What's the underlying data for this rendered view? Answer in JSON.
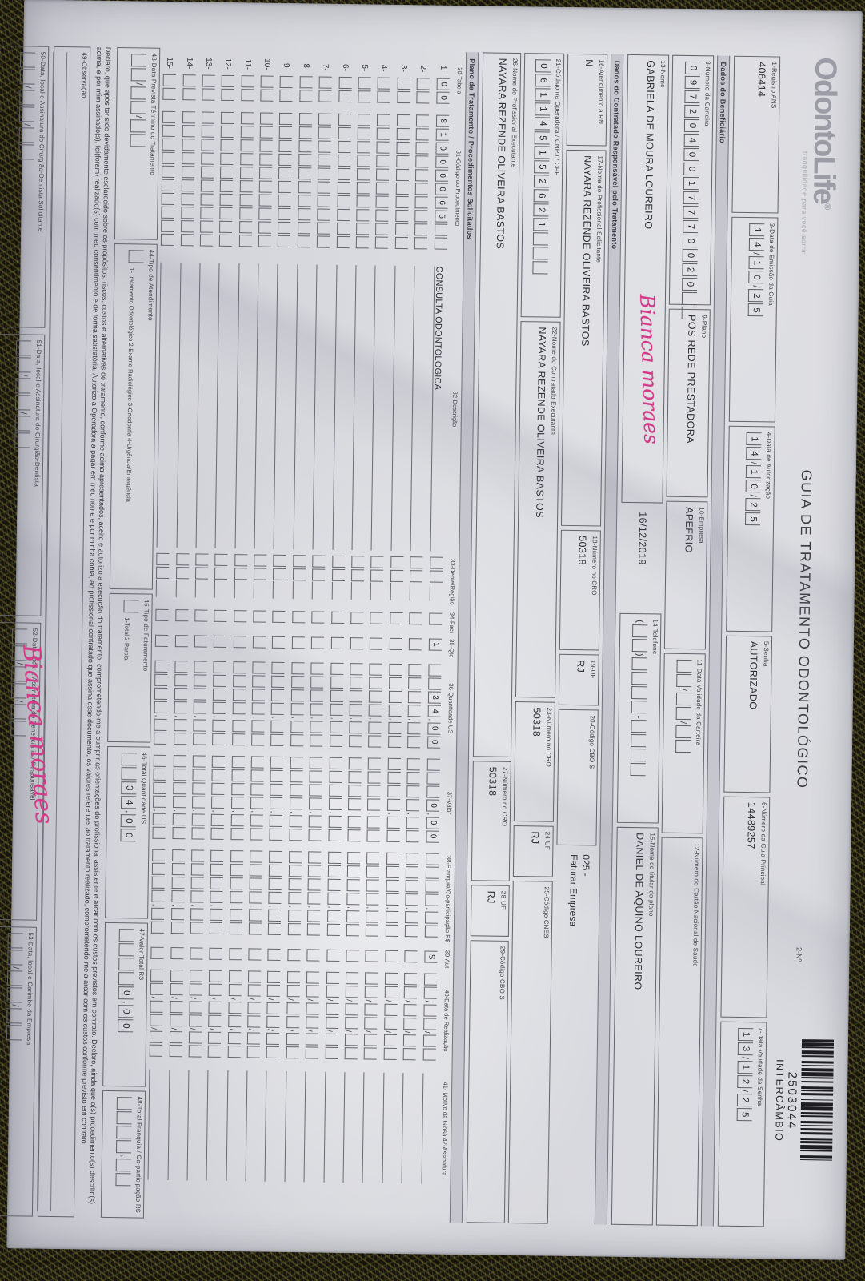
{
  "colors": {
    "paper": "#d8d8de",
    "ink": "#2e2e36",
    "handwriting_pink": "#d33a88",
    "band_gray": "#c6c7ce"
  },
  "brand": {
    "logo": "OdontoLife",
    "reg": "®",
    "tagline": "tranquilidade para você sorrir"
  },
  "title": "GUIA DE TRATAMENTO ODONTOLÓGICO",
  "doc_number_label": "2-Nº",
  "barcode": {
    "number": "2503044",
    "subtitle": "INTERCÂMBIO"
  },
  "top_fields": {
    "registro": {
      "label": "1-Registro ANS",
      "value": "406414"
    },
    "emissao": {
      "label": "3-Data de Emissão da Guia",
      "pattern": "##/##/##",
      "value": "141025"
    },
    "autorizacao": {
      "label": "4-Data de Autorização",
      "pattern": "##/##/##",
      "value": "141025"
    },
    "senha": {
      "label": "5-Senha",
      "value": "AUTORIZADO"
    },
    "guia_principal": {
      "label": "6-Número da Guia Principal",
      "value": "14489257"
    },
    "validade_senha": {
      "label": "7-Data Validade da Senha",
      "pattern": "##/##/##",
      "value": "131225"
    }
  },
  "beneficiario": {
    "section_label": "Dados do Beneficiário",
    "carteira": {
      "label": "8-Número da Carteira",
      "pattern": "##################",
      "value": "0972040017770020"
    },
    "plano": {
      "label": "9-Plano",
      "value": "POS REDE PRESTADORA"
    },
    "empresa": {
      "label": "10-Empresa",
      "value": "APEFRIO"
    },
    "validade_carteira": {
      "label": "11-Data Validade da Carteira",
      "pattern": "##/##/##",
      "value": ""
    },
    "cns": {
      "label": "12-Número do Cartão Nacional de Saúde",
      "value": ""
    },
    "nome": {
      "label": "13-Nome",
      "value": "GABRIELA DE MOURA LOUREIRO"
    },
    "nascimento": "16/12/2019",
    "handwriting": "Bianca moraes",
    "telefone": {
      "label": "14-Telefone",
      "pattern": "(##)####-####",
      "value": ""
    },
    "titular": {
      "label": "15-Nome do titular do plano",
      "value": "DANIEL DE AQUINO LOUREIRO"
    }
  },
  "contratado": {
    "section_label": "Dados do Contratado Responsável pelo Tratamento",
    "rn": {
      "label": "16-Atendimento a RN",
      "value": "N"
    },
    "solicitante": {
      "label": "17-Nome do Profissional Solicitante",
      "value": "NAYARA REZENDE OLIVEIRA BASTOS"
    },
    "cro_solicitante": {
      "label": "18-Número no CRO",
      "value": "50318"
    },
    "uf_solicitante": {
      "label": "19-UF",
      "value": "RJ"
    },
    "cbo_solicitante": {
      "label": "20-Código CBO S",
      "value": ""
    },
    "nota_linha1": "025 -",
    "nota_linha2": "Faturar Empresa",
    "codigo_operadora": {
      "label": "21-Código na Operadora / CNPJ / CPF",
      "pattern": "###############",
      "value": "061145152621"
    },
    "executante": {
      "label": "22-Nome do Contratado Executante",
      "value": "NAYARA REZENDE OLIVEIRA BASTOS"
    },
    "cro_executante": {
      "label": "23-Número no CRO",
      "value": "50318"
    },
    "uf_executante": {
      "label": "24-UF",
      "value": "RJ"
    },
    "cnes": {
      "label": "25-Código CNES",
      "value": ""
    },
    "prof_executante": {
      "label": "26-Nome do Profissional Executante",
      "value": "NAYARA REZENDE OLIVEIRA BASTOS"
    },
    "cro_prof": {
      "label": "27-Número no CRO",
      "value": "50318"
    },
    "uf_prof": {
      "label": "28-UF",
      "value": "RJ"
    },
    "cbo_prof": {
      "label": "29-Código CBO S",
      "value": ""
    }
  },
  "table": {
    "section_label": "Plano de Tratamento / Procedimentos Solicitados",
    "headers": [
      "30-Tabela",
      "31-Código do Procedimento",
      "32-Descrição",
      "33-Dente/Região",
      "34-Face",
      "35-Qtd",
      "36-Quantidade US",
      "37-Valor",
      "38-Franquia/Co-participação R$",
      "39-Aut",
      "40-Data de Realização",
      "41- Motivo da Glosa 42-Assinatura"
    ],
    "row_count": 15,
    "rows": [
      {
        "num": "1-",
        "tabela": "00",
        "codigo": "81000065",
        "descricao": "CONSULTA ODONTOLOGICA",
        "dente": "",
        "face": "",
        "qtd": "1",
        "us": "  3400",
        "valor": "   000",
        "franquia": "",
        "aut": "S",
        "data": ""
      }
    ]
  },
  "totals": {
    "termino": {
      "label": "43-Data Prevista Término do Tratamento",
      "pattern": "##/##/##",
      "value": ""
    },
    "tipo_atendimento": {
      "label": "44-Tipo de Atendimento",
      "pattern": "#",
      "value": "",
      "options": "1-Tratamento Odontológico  2-Exame Radiológico  3-Ortodontia  4-Urgência/Emergência"
    },
    "tipo_faturamento": {
      "label": "45-Tipo de Faturamento",
      "pattern": "#",
      "value": "",
      "options": "1-Total 2-Parcial"
    },
    "total_us": {
      "label": "46-Total Quantidade US",
      "pattern": "####,##",
      "value": "  3400"
    },
    "valor_total": {
      "label": "47-Valor Total R$",
      "pattern": "#####,##",
      "value": "    000"
    },
    "total_franquia": {
      "label": "48-Total Franquia / Co-participação R$",
      "pattern": "####,##",
      "value": ""
    }
  },
  "declaration": "Declaro, que após ter sido devidamente esclarecido sobre os propósitos, riscos, custos e alternativas de tratamento, conforme acima apresentados, aceito e autorizo a execução do tratamento, comprometendo-me a cumprir as orientações do profissional assistente e arcar com os custos previstos em contrato. Declaro, ainda que o(s) procedimento(s) descrito(s) acima, e por mim assinado(s), foi(foram) realizado(s) com meu consentimento e de forma satisfatória. Autorizo a Operadora a pagar em meu nome e por minha conta, ao profissional contratado que assina esse documento, os valores referentes ao tratamento realizado, comprometendo-me a arcar com os custos conforme previsto em contrato.",
  "observacao_label": "49-Observação",
  "signatures": [
    {
      "label": "50-Data, local e Assinatura do Cirurgião-Dentista Solicitante",
      "pattern": "##/##/##",
      "value": "",
      "handwriting": ""
    },
    {
      "label": "51-Data, local e Assinatura do Cirurgião-Dentista",
      "pattern": "##/##/##",
      "value": "",
      "handwriting": ""
    },
    {
      "label": "52-Data, local e Assinatura do Beneficiário / Responsável",
      "pattern": "##/##/##",
      "value": "",
      "handwriting": "Bianca moraes"
    },
    {
      "label": "53-Data, local e Carimbo da Empresa",
      "pattern": "##/##/##",
      "value": "",
      "handwriting": ""
    }
  ]
}
